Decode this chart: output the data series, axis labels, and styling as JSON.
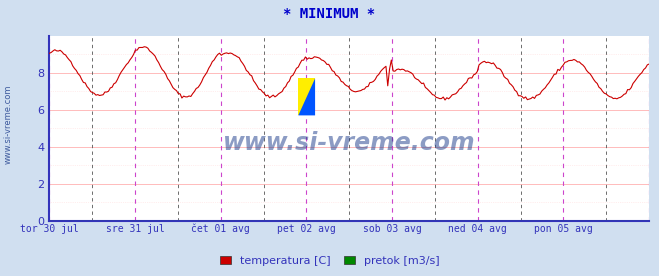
{
  "title": "* MINIMUM *",
  "title_color": "#0000cc",
  "background_color": "#d0dff0",
  "plot_bg_color": "#ffffff",
  "grid_h_color": "#ffbbbb",
  "grid_h_minor_color": "#ffdddd",
  "grid_v_magenta_color": "#cc44cc",
  "grid_v_dark_color": "#555555",
  "ylim": [
    0,
    10
  ],
  "yticks": [
    0,
    2,
    4,
    6,
    8
  ],
  "line_color": "#cc0000",
  "line_color2": "#008800",
  "axis_color": "#3333bb",
  "tick_label_color": "#3333bb",
  "tick_labels": [
    "tor 30 jul",
    "sre 31 jul",
    "čet 01 avg",
    "pet 02 avg",
    "sob 03 avg",
    "ned 04 avg",
    "pon 05 avg"
  ],
  "legend_labels": [
    "temperatura [C]",
    "pretok [m3/s]"
  ],
  "legend_colors": [
    "#cc0000",
    "#008800"
  ],
  "watermark": "www.si-vreme.com",
  "watermark_color": "#1a3a8a",
  "n_days": 7,
  "points_per_day": 48,
  "day_maxes": [
    9.2,
    9.4,
    9.1,
    8.85,
    8.2,
    8.6,
    8.7
  ],
  "day_mins": [
    6.8,
    6.7,
    6.7,
    7.0,
    6.6,
    6.6,
    6.6
  ],
  "figsize": [
    6.59,
    2.76
  ],
  "dpi": 100
}
